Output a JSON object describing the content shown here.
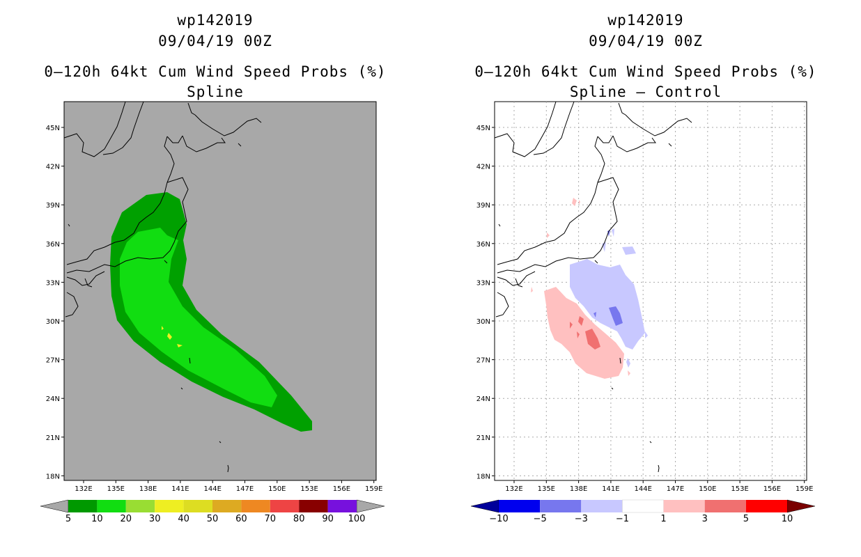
{
  "left": {
    "title_line1": "wp142019",
    "title_line2": "09/04/19 00Z",
    "title_line3": "0–120h 64kt Cum Wind Speed Probs (%)",
    "title_line4": "Spline",
    "colorbar": {
      "levels": [
        "5",
        "10",
        "20",
        "30",
        "40",
        "50",
        "60",
        "70",
        "80",
        "90",
        "100"
      ],
      "colors": [
        "#009900",
        "#11dd11",
        "#99dd33",
        "#eeee22",
        "#dddd22",
        "#ddaa22",
        "#ee8822",
        "#ee4444",
        "#880000",
        "#7711dd"
      ],
      "below_color": "#a8a8a8",
      "above_color": "#a8a8a8"
    }
  },
  "right": {
    "title_line1": "wp142019",
    "title_line2": "09/04/19 00Z",
    "title_line3": "0–120h 64kt Cum Wind Speed Probs (%)",
    "title_line4": "Spline – Control",
    "colorbar": {
      "levels": [
        "−10",
        "−5",
        "−3",
        "−1",
        "1",
        "3",
        "5",
        "10"
      ],
      "colors": [
        "#0000ee",
        "#7777ee",
        "#c8c8ff",
        "#ffffff",
        "#ffc0c0",
        "#f07070",
        "#ff0000"
      ],
      "below_color": "#00009a",
      "above_color": "#7a0000"
    }
  },
  "axes": {
    "lon_labels": [
      "132E",
      "135E",
      "138E",
      "141E",
      "144E",
      "147E",
      "150E",
      "153E",
      "156E",
      "159E"
    ],
    "lat_labels": [
      "45N",
      "42N",
      "39N",
      "36N",
      "33N",
      "30N",
      "27N",
      "24N",
      "21N",
      "18N"
    ]
  },
  "colors": {
    "land_background": "#a8a8a8",
    "prob_dark_green": "#00a000",
    "prob_light_green": "#11dd11",
    "prob_yellow": "#eeee22",
    "diff_light_blue": "#c8c8ff",
    "diff_mid_blue": "#7777ee",
    "diff_light_red": "#ffc0c0",
    "diff_mid_red": "#f07070"
  }
}
